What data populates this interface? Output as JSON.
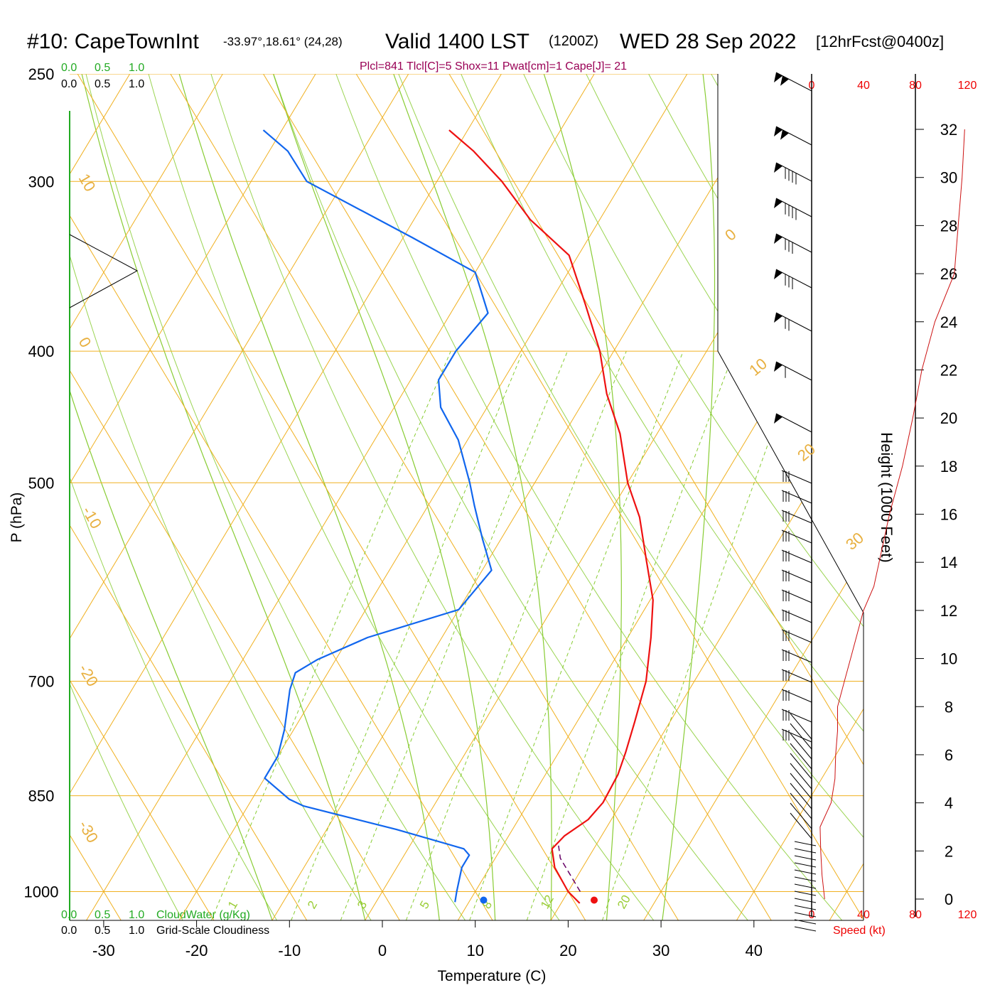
{
  "title": {
    "station": "#10: CapeTownInt",
    "coords": "-33.97°,18.61° (24,28)",
    "valid": "Valid 1400 LST",
    "zulu": "(1200Z)",
    "date": "WED 28 Sep 2022",
    "forecast": "[12hrFcst@0400z]"
  },
  "indices": "Plcl=841 Tlcl[C]=5 Shox=11 Pwat[cm]=1 Cape[J]= 21",
  "cloud_scale": {
    "top_green": [
      "0.0",
      "0.5",
      "1.0"
    ],
    "top_black": [
      "0.0",
      "0.5",
      "1.0"
    ],
    "bottom_green": [
      "0.0",
      "0.5",
      "1.0"
    ],
    "bottom_black": [
      "0.0",
      "0.5",
      "1.0"
    ],
    "cloudwater_label": "CloudWater (g/Kg)",
    "cloudiness_label": "Grid-Scale Cloudiness"
  },
  "speed_axis": {
    "ticks": [
      "0",
      "40",
      "80",
      "120"
    ],
    "label": "Speed (kt)"
  },
  "colors": {
    "temperature": "#ee1111",
    "dewpoint": "#1166ee",
    "isotherm": "#f0b020",
    "moist_adiabat": "#88cc33",
    "cloud_green": "#22aa22",
    "info": "#990055",
    "speed": "#ee0000"
  },
  "chart_data": {
    "type": "line",
    "skew_t": true,
    "xlabel": "Temperature (C)",
    "ylabel": "P (hPa)",
    "y2label": "Height (1000 Feet)",
    "x_ticks": [
      -30,
      -20,
      -10,
      0,
      10,
      20,
      30,
      40
    ],
    "pressure_ticks": [
      250,
      300,
      400,
      500,
      700,
      850,
      1000
    ],
    "height_ticks": [
      0,
      2,
      4,
      6,
      8,
      10,
      12,
      14,
      16,
      18,
      20,
      22,
      24,
      26,
      28,
      30,
      32
    ],
    "isotherm_labels": [
      "10",
      "0",
      "-10",
      "-20",
      "-30",
      "0",
      "10",
      "20",
      "30"
    ],
    "mixing_ratio_labels": [
      "1",
      "2",
      "3",
      "5",
      "8",
      "12",
      "20"
    ],
    "series": [
      {
        "name": "Temperature",
        "points": [
          [
            22.0,
            1020
          ],
          [
            20.0,
            1000
          ],
          [
            17.0,
            960
          ],
          [
            15.5,
            930
          ],
          [
            16.0,
            910
          ],
          [
            17.5,
            885
          ],
          [
            18.0,
            860
          ],
          [
            17.8,
            820
          ],
          [
            17.2,
            790
          ],
          [
            16.2,
            750
          ],
          [
            14.8,
            700
          ],
          [
            12.5,
            650
          ],
          [
            10.3,
            610
          ],
          [
            7.0,
            570
          ],
          [
            3.5,
            530
          ],
          [
            0.0,
            500
          ],
          [
            -4.0,
            460
          ],
          [
            -8.0,
            430
          ],
          [
            -11.5,
            400
          ],
          [
            -16.0,
            370
          ],
          [
            -21.0,
            340
          ],
          [
            -27.5,
            320
          ],
          [
            -33.0,
            300
          ],
          [
            -38.0,
            285
          ],
          [
            -42.0,
            275
          ]
        ]
      },
      {
        "name": "Dewpoint",
        "points": [
          [
            8.5,
            1018
          ],
          [
            8.0,
            1000
          ],
          [
            7.0,
            960
          ],
          [
            7.0,
            940
          ],
          [
            6.0,
            930
          ],
          [
            -2.5,
            900
          ],
          [
            -14.0,
            865
          ],
          [
            -16.0,
            855
          ],
          [
            -20.0,
            825
          ],
          [
            -20.0,
            795
          ],
          [
            -21.0,
            760
          ],
          [
            -23.0,
            710
          ],
          [
            -23.5,
            690
          ],
          [
            -22.0,
            675
          ],
          [
            -18.0,
            650
          ],
          [
            -10.0,
            620
          ],
          [
            -9.0,
            580
          ],
          [
            -12.0,
            550
          ],
          [
            -15.0,
            520
          ],
          [
            -17.0,
            500
          ],
          [
            -21.0,
            465
          ],
          [
            -25.0,
            440
          ],
          [
            -27.0,
            420
          ],
          [
            -27.0,
            400
          ],
          [
            -26.0,
            375
          ],
          [
            -30.0,
            350
          ],
          [
            -39.0,
            330
          ],
          [
            -54.0,
            300
          ],
          [
            -58.0,
            285
          ],
          [
            -62.0,
            275
          ]
        ]
      }
    ],
    "parcel_path": [
      [
        21.3,
        1000
      ],
      [
        17.0,
        945
      ],
      [
        16.0,
        925
      ]
    ],
    "surface_temperature": 22.8,
    "surface_dewpoint": 10.9,
    "height_profile": [
      [
        0,
        10
      ],
      [
        1,
        8
      ],
      [
        2,
        7
      ],
      [
        3,
        6.5
      ],
      [
        4,
        15
      ],
      [
        5,
        18
      ],
      [
        6,
        18.5
      ],
      [
        7,
        20
      ],
      [
        8,
        20
      ],
      [
        9,
        25
      ],
      [
        10,
        30
      ],
      [
        11,
        35
      ],
      [
        12,
        40
      ],
      [
        13,
        48
      ],
      [
        14,
        52
      ],
      [
        16,
        60
      ],
      [
        18,
        70
      ],
      [
        20,
        78
      ],
      [
        22,
        85
      ],
      [
        24,
        95
      ],
      [
        26,
        110
      ],
      [
        28,
        113
      ],
      [
        30,
        116
      ],
      [
        32,
        118
      ]
    ]
  }
}
